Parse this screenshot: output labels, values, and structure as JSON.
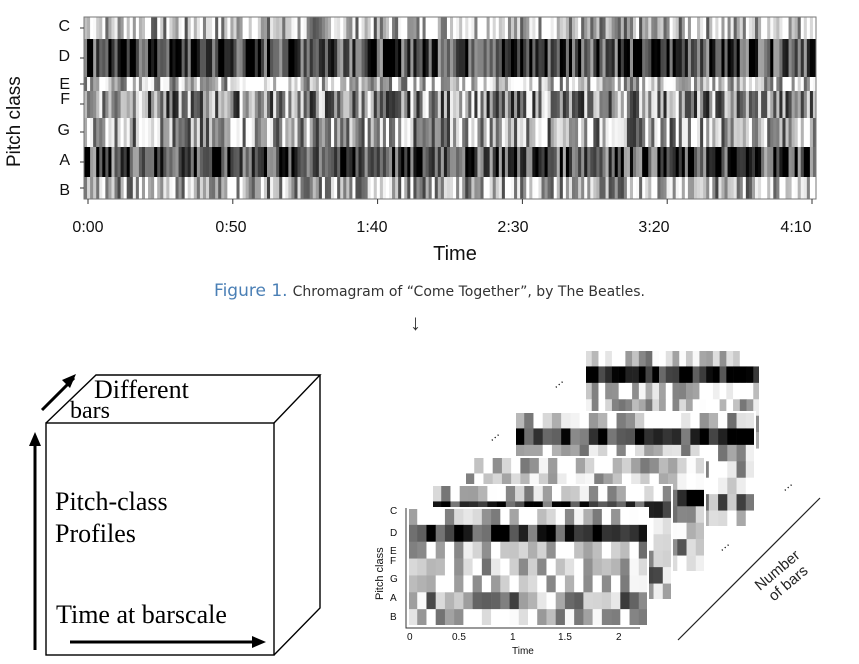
{
  "figure": {
    "label": "Figure 1.",
    "caption": "Chromagram of “Come Together”, by The Beatles.",
    "arrow": "↓"
  },
  "chart_data": [
    {
      "type": "heatmap",
      "title": "",
      "xlabel": "Time",
      "ylabel": "Pitch class",
      "y_tick_labels": [
        "C",
        "D",
        "E",
        "F",
        "G",
        "A",
        "B"
      ],
      "x_tick_labels": [
        "0:00",
        "0:50",
        "1:40",
        "2:30",
        "3:20",
        "4:10"
      ],
      "x_tick_values_seconds": [
        0,
        50,
        100,
        150,
        200,
        250
      ],
      "xlim_seconds": [
        0,
        255
      ],
      "rows": [
        "C",
        "D",
        "E",
        "F",
        "G",
        "A",
        "B"
      ],
      "row_mean_intensity": [
        0.25,
        0.8,
        0.2,
        0.45,
        0.35,
        0.75,
        0.3
      ],
      "colormap": "grayscale, black = high energy"
    },
    {
      "type": "heatmap",
      "title": "",
      "xlabel": "Time",
      "ylabel": "Pitch class",
      "y_tick_labels": [
        "C",
        "D",
        "E",
        "F",
        "G",
        "A",
        "B"
      ],
      "x_tick_labels": [
        "0",
        "0.5",
        "1",
        "1.5",
        "2"
      ],
      "xlim": [
        0,
        2.2
      ],
      "note": "stack of per-bar chromagram slices"
    }
  ],
  "cube": {
    "top_label_1": "Different",
    "top_label_2": "bars",
    "middle_label_1": "Pitch-class",
    "middle_label_2": "Profiles",
    "bottom_label": "Time at barscale"
  },
  "stack": {
    "dots": "…",
    "number_label_1": "Number",
    "number_label_2": "of bars"
  }
}
